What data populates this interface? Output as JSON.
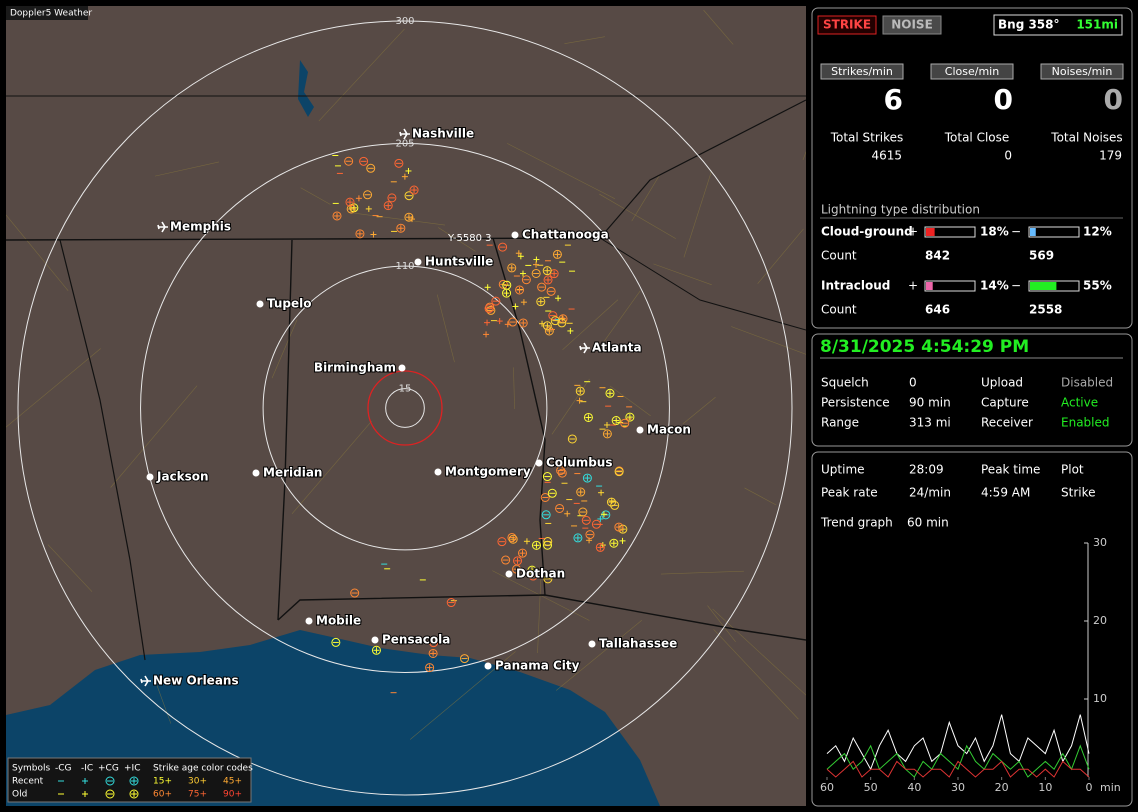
{
  "app": {
    "title": "Doppler5 Weather"
  },
  "header": {
    "strike": "STRIKE",
    "noise": "NOISE",
    "bearing": "Bng 358°",
    "range": "151mi"
  },
  "rates": [
    {
      "label": "Strikes/min",
      "value": 6
    },
    {
      "label": "Close/min",
      "value": 0
    },
    {
      "label": "Noises/min",
      "value": 0
    }
  ],
  "totals": [
    {
      "label": "Total Strikes",
      "value": 4615
    },
    {
      "label": "Total Close",
      "value": 0
    },
    {
      "label": "Total Noises",
      "value": 179
    }
  ],
  "distribution": {
    "title": "Lightning type distribution",
    "count_label": "Count",
    "rows": [
      {
        "name": "Cloud-ground",
        "pos_sign": "+",
        "pos_pct": 18,
        "pos_label": "18%",
        "neg_sign": "−",
        "neg_pct": 12,
        "neg_label": "12%",
        "pos_count": 842,
        "neg_count": 569
      },
      {
        "name": "Intracloud",
        "pos_sign": "+",
        "pos_pct": 14,
        "pos_label": "14%",
        "neg_sign": "−",
        "neg_pct": 55,
        "neg_label": "55%",
        "pos_count": 646,
        "neg_count": 2558
      }
    ]
  },
  "datetime": "8/31/2025 4:54:29 PM",
  "settings": [
    {
      "label": "Squelch",
      "value": "0",
      "label2": "Upload",
      "value2": "Disabled"
    },
    {
      "label": "Persistence",
      "value": "90 min",
      "label2": "Capture",
      "value2": "Active"
    },
    {
      "label": "Range",
      "value": "313 mi",
      "label2": "Receiver",
      "value2": "Enabled"
    }
  ],
  "stats": [
    {
      "label": "Uptime",
      "value": "28:09",
      "label2": "Peak time",
      "value2": "4:59 AM",
      "label3": "Plot"
    },
    {
      "label": "Peak rate",
      "value": "24/min",
      "label2": "",
      "value2": "",
      "label3": "Strike"
    }
  ],
  "trend": {
    "label": "Trend graph",
    "window": "60 min",
    "x_unit": "min",
    "ylim": [
      0,
      30
    ],
    "yticks": [
      10,
      20,
      30
    ],
    "xlim": [
      60,
      0
    ],
    "xticks": [
      60,
      50,
      40,
      30,
      20,
      10,
      0
    ],
    "x": [
      60,
      58,
      56,
      54,
      52,
      50,
      48,
      46,
      44,
      42,
      40,
      38,
      36,
      34,
      32,
      30,
      28,
      26,
      24,
      22,
      20,
      18,
      16,
      14,
      12,
      10,
      8,
      6,
      4,
      2,
      0
    ],
    "series": [
      {
        "color": "#ffffff",
        "values": [
          3,
          4,
          2,
          5,
          3,
          1,
          4,
          6,
          3,
          2,
          4,
          5,
          2,
          3,
          7,
          4,
          3,
          5,
          2,
          4,
          8,
          3,
          2,
          5,
          4,
          3,
          6,
          2,
          4,
          8,
          3
        ]
      },
      {
        "color": "#33cc33",
        "values": [
          1,
          2,
          3,
          1,
          2,
          4,
          1,
          2,
          3,
          1,
          0,
          2,
          1,
          3,
          2,
          1,
          4,
          2,
          1,
          3,
          2,
          1,
          2,
          0,
          1,
          2,
          1,
          3,
          1,
          4,
          1
        ]
      },
      {
        "color": "#dd3333",
        "values": [
          1,
          0,
          1,
          2,
          0,
          1,
          1,
          0,
          2,
          1,
          1,
          0,
          1,
          1,
          0,
          2,
          1,
          0,
          1,
          1,
          2,
          0,
          1,
          1,
          0,
          1,
          0,
          2,
          1,
          1,
          0
        ]
      }
    ]
  },
  "map": {
    "rings": [
      300,
      205,
      110,
      15
    ],
    "marker": "Y-5580 3",
    "cities": [
      "Nashville",
      "Memphis",
      "Chattanooga",
      "Huntsville",
      "Tupelo",
      "Atlanta",
      "Birmingham",
      "Macon",
      "Columbus",
      "Jackson",
      "Meridian",
      "Montgomery",
      "Dothan",
      "Mobile",
      "Pensacola",
      "Tallahassee",
      "Panama City",
      "New Orleans"
    ],
    "legend": {
      "symbols": "Symbols",
      "types": [
        "-CG",
        "-IC",
        "+CG",
        "+IC"
      ],
      "age_title": "Strike age color codes",
      "recent": "Recent",
      "old": "Old",
      "ages": [
        "15+",
        "30+",
        "45+",
        "60+",
        "75+",
        "90+"
      ]
    }
  }
}
